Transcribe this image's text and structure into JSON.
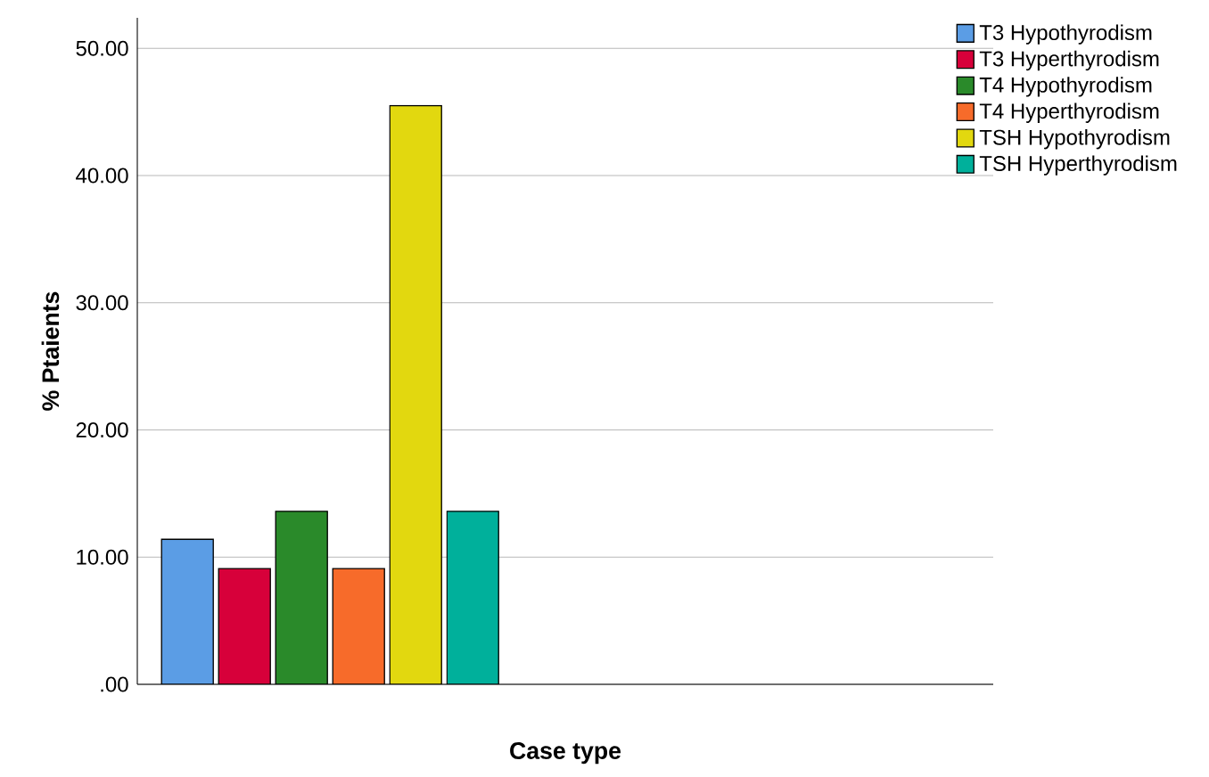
{
  "chart_data": {
    "type": "bar",
    "xlabel": "Case type",
    "ylabel": "% Ptaients",
    "categories": [
      null
    ],
    "series": [
      {
        "name": "T3 Hypothyrodism",
        "color": "#5b9de5",
        "values": [
          11.4
        ]
      },
      {
        "name": "T3 Hyperthyrodism",
        "color": "#d7003a",
        "values": [
          9.1
        ]
      },
      {
        "name": "T4 Hypothyrodism",
        "color": "#2a8a2a",
        "values": [
          13.6
        ]
      },
      {
        "name": "T4 Hyperthyrodism",
        "color": "#f76b2a",
        "values": [
          9.1
        ]
      },
      {
        "name": "TSH Hypothyrodism",
        "color": "#e2d80f",
        "values": [
          45.5
        ]
      },
      {
        "name": "TSH Hyperthyrodism",
        "color": "#00b09b",
        "values": [
          13.6
        ]
      }
    ],
    "ylim": [
      0,
      52.4
    ],
    "yticks": [
      {
        "value": 0,
        "label": ".00"
      },
      {
        "value": 10,
        "label": "10.00"
      },
      {
        "value": 20,
        "label": "20.00"
      },
      {
        "value": 30,
        "label": "30.00"
      },
      {
        "value": 40,
        "label": "40.00"
      },
      {
        "value": 50,
        "label": "50.00"
      }
    ],
    "grid": "y",
    "legend": "top right"
  }
}
